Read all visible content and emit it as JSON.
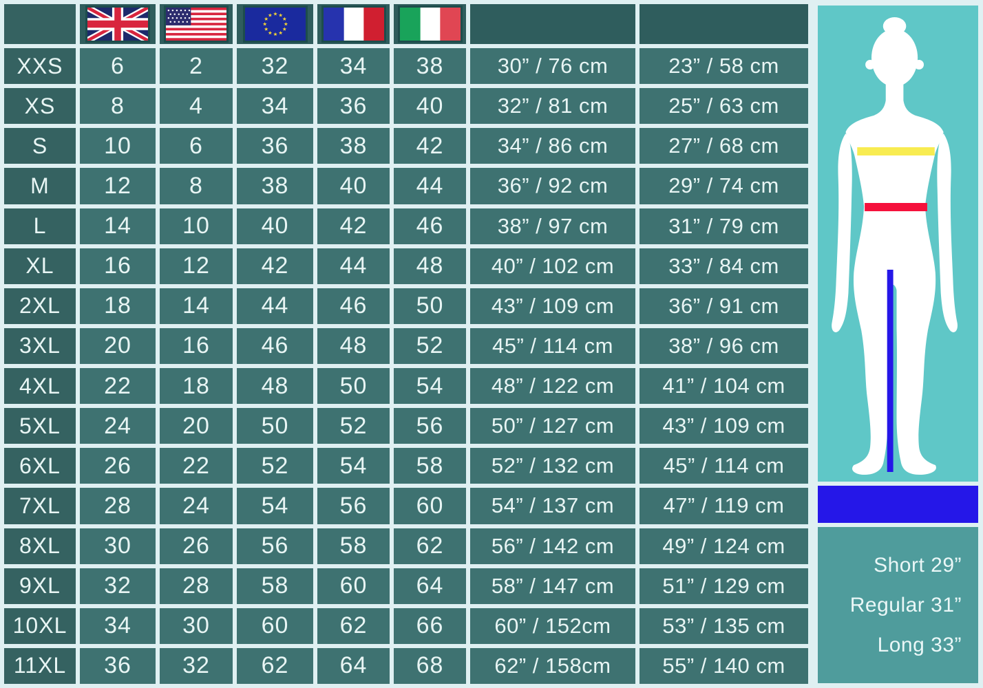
{
  "chart_data": {
    "type": "table",
    "title": "Women's garment size conversion and body measurement chart",
    "columns": [
      {
        "id": "size",
        "header": ""
      },
      {
        "id": "uk",
        "header_icon": "uk-flag"
      },
      {
        "id": "us",
        "header_icon": "us-flag"
      },
      {
        "id": "eu",
        "header_icon": "eu-flag"
      },
      {
        "id": "fr",
        "header_icon": "france-flag"
      },
      {
        "id": "it",
        "header_icon": "italy-flag"
      },
      {
        "id": "bust",
        "header_swatch_color": "#F8EC51"
      },
      {
        "id": "waist",
        "header_swatch_color": "#F5113C"
      }
    ],
    "rows": [
      [
        "XXS",
        "6",
        "2",
        "32",
        "34",
        "38",
        "30” / 76 cm",
        "23” / 58 cm"
      ],
      [
        "XS",
        "8",
        "4",
        "34",
        "36",
        "40",
        "32” / 81 cm",
        "25” / 63 cm"
      ],
      [
        "S",
        "10",
        "6",
        "36",
        "38",
        "42",
        "34” / 86 cm",
        "27” / 68 cm"
      ],
      [
        "M",
        "12",
        "8",
        "38",
        "40",
        "44",
        "36” / 92 cm",
        "29” / 74 cm"
      ],
      [
        "L",
        "14",
        "10",
        "40",
        "42",
        "46",
        "38” / 97 cm",
        "31” / 79 cm"
      ],
      [
        "XL",
        "16",
        "12",
        "42",
        "44",
        "48",
        "40” / 102 cm",
        "33” / 84 cm"
      ],
      [
        "2XL",
        "18",
        "14",
        "44",
        "46",
        "50",
        "43” / 109 cm",
        "36” / 91 cm"
      ],
      [
        "3XL",
        "20",
        "16",
        "46",
        "48",
        "52",
        "45” / 114 cm",
        "38” / 96 cm"
      ],
      [
        "4XL",
        "22",
        "18",
        "48",
        "50",
        "54",
        "48” / 122 cm",
        "41” / 104 cm"
      ],
      [
        "5XL",
        "24",
        "20",
        "50",
        "52",
        "56",
        "50” / 127 cm",
        "43” / 109 cm"
      ],
      [
        "6XL",
        "26",
        "22",
        "52",
        "54",
        "58",
        "52” / 132 cm",
        "45” / 114 cm"
      ],
      [
        "7XL",
        "28",
        "24",
        "54",
        "56",
        "60",
        "54” / 137 cm",
        "47” / 119 cm"
      ],
      [
        "8XL",
        "30",
        "26",
        "56",
        "58",
        "62",
        "56” / 142 cm",
        "49” / 124 cm"
      ],
      [
        "9XL",
        "32",
        "28",
        "58",
        "60",
        "64",
        "58” / 147 cm",
        "51” / 129 cm"
      ],
      [
        "10XL",
        "34",
        "30",
        "60",
        "62",
        "66",
        "60” / 152cm",
        "53” / 135 cm"
      ],
      [
        "11XL",
        "36",
        "32",
        "62",
        "64",
        "68",
        "62” / 158cm",
        "55” / 140 cm"
      ]
    ]
  },
  "figure_legend": {
    "bust_line_color": "#F8EC51",
    "waist_line_color": "#F5113C",
    "inseam_line_color": "#2517E8",
    "inseam_options": [
      "Short 29”",
      "Regular 31”",
      "Long 33”"
    ]
  }
}
